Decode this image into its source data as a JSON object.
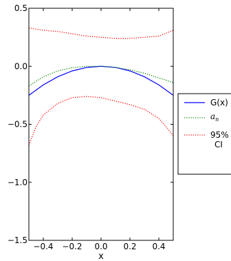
{
  "chart_data": {
    "type": "line",
    "xlabel": "x",
    "ylabel": "",
    "title": "",
    "xlim": [
      -0.5,
      0.5
    ],
    "ylim": [
      -1.5,
      0.5
    ],
    "xticks": [
      -0.4,
      -0.2,
      0.0,
      0.2,
      0.4
    ],
    "xtick_labels": [
      "−0.4",
      "−0.2",
      "0.0",
      "0.2",
      "0.4"
    ],
    "yticks": [
      -1.5,
      -1.0,
      -0.5,
      0.0,
      0.5
    ],
    "ytick_labels": [
      "−1.5",
      "−1.0",
      "−0.5",
      "0.0",
      "0.5"
    ],
    "grid": false,
    "legend_position": "outside-right",
    "series": [
      {
        "name": "G(x)",
        "color": "#0000ff",
        "style": "solid",
        "x": [
          -0.5,
          -0.4,
          -0.3,
          -0.2,
          -0.1,
          0.0,
          0.1,
          0.2,
          0.3,
          0.4,
          0.5
        ],
        "y": [
          -0.25,
          -0.16,
          -0.09,
          -0.04,
          -0.01,
          0.0,
          -0.01,
          -0.04,
          -0.09,
          -0.16,
          -0.25
        ]
      },
      {
        "name": "a_n",
        "legend_label": "a",
        "legend_subscript": "n",
        "color": "#008000",
        "style": "dotted",
        "x": [
          -0.5,
          -0.4,
          -0.3,
          -0.2,
          -0.1,
          0.0,
          0.1,
          0.2,
          0.3,
          0.4,
          0.5
        ],
        "y": [
          -0.17,
          -0.09,
          -0.04,
          -0.012,
          0.0,
          0.0,
          -0.01,
          -0.03,
          -0.06,
          -0.1,
          -0.14
        ]
      },
      {
        "name": "95% CI",
        "legend_label_line1": "95%",
        "legend_label_line2": "CI",
        "color": "#ff0000",
        "style": "dotted",
        "x": [
          -0.5,
          -0.4,
          -0.3,
          -0.2,
          -0.1,
          0.0,
          0.1,
          0.2,
          0.3,
          0.4,
          0.5
        ],
        "y": [
          0.33,
          0.31,
          0.3,
          0.28,
          0.26,
          0.25,
          0.24,
          0.24,
          0.25,
          0.26,
          0.31
        ]
      },
      {
        "name": "95% CI lower",
        "color": "#ff0000",
        "style": "dotted",
        "x": [
          -0.5,
          -0.45,
          -0.4,
          -0.3,
          -0.2,
          -0.1,
          0.0,
          0.1,
          0.2,
          0.3,
          0.4,
          0.45,
          0.5
        ],
        "y": [
          -0.68,
          -0.52,
          -0.42,
          -0.32,
          -0.27,
          -0.26,
          -0.27,
          -0.3,
          -0.33,
          -0.37,
          -0.45,
          -0.52,
          -0.6
        ]
      }
    ]
  }
}
